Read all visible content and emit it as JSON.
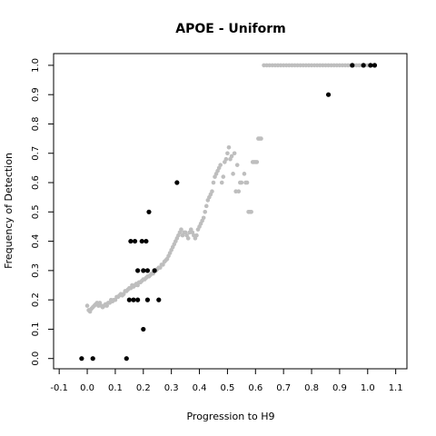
{
  "chart_data": {
    "type": "scatter",
    "title": "APOE - Uniform",
    "xlabel": "Progression to H9",
    "ylabel": "Frequency of Detection",
    "xlim": [
      -0.12,
      1.14
    ],
    "ylim": [
      -0.035,
      1.04
    ],
    "x_ticks": [
      "-0.1",
      "0.0",
      "0.1",
      "0.2",
      "0.3",
      "0.4",
      "0.5",
      "0.6",
      "0.7",
      "0.8",
      "0.9",
      "1.0",
      "1.1"
    ],
    "y_ticks": [
      "0.0",
      "0.1",
      "0.2",
      "0.3",
      "0.4",
      "0.5",
      "0.6",
      "0.7",
      "0.8",
      "0.9",
      "1.0"
    ],
    "grid": false,
    "series": [
      {
        "color": "#bebebe",
        "points": [
          [
            0.0,
            0.18
          ],
          [
            0.005,
            0.165
          ],
          [
            0.01,
            0.16
          ],
          [
            0.015,
            0.17
          ],
          [
            0.02,
            0.175
          ],
          [
            0.025,
            0.18
          ],
          [
            0.03,
            0.185
          ],
          [
            0.035,
            0.19
          ],
          [
            0.04,
            0.18
          ],
          [
            0.045,
            0.19
          ],
          [
            0.05,
            0.18
          ],
          [
            0.055,
            0.175
          ],
          [
            0.06,
            0.18
          ],
          [
            0.065,
            0.185
          ],
          [
            0.07,
            0.18
          ],
          [
            0.075,
            0.19
          ],
          [
            0.08,
            0.19
          ],
          [
            0.085,
            0.2
          ],
          [
            0.09,
            0.195
          ],
          [
            0.095,
            0.2
          ],
          [
            0.1,
            0.2
          ],
          [
            0.105,
            0.21
          ],
          [
            0.11,
            0.21
          ],
          [
            0.115,
            0.215
          ],
          [
            0.12,
            0.22
          ],
          [
            0.125,
            0.215
          ],
          [
            0.13,
            0.22
          ],
          [
            0.135,
            0.23
          ],
          [
            0.14,
            0.23
          ],
          [
            0.145,
            0.235
          ],
          [
            0.15,
            0.24
          ],
          [
            0.155,
            0.24
          ],
          [
            0.16,
            0.25
          ],
          [
            0.165,
            0.245
          ],
          [
            0.17,
            0.25
          ],
          [
            0.175,
            0.255
          ],
          [
            0.18,
            0.25
          ],
          [
            0.185,
            0.26
          ],
          [
            0.19,
            0.26
          ],
          [
            0.195,
            0.265
          ],
          [
            0.2,
            0.27
          ],
          [
            0.205,
            0.27
          ],
          [
            0.21,
            0.275
          ],
          [
            0.215,
            0.28
          ],
          [
            0.22,
            0.28
          ],
          [
            0.225,
            0.285
          ],
          [
            0.23,
            0.29
          ],
          [
            0.235,
            0.29
          ],
          [
            0.24,
            0.3
          ],
          [
            0.245,
            0.3
          ],
          [
            0.25,
            0.305
          ],
          [
            0.255,
            0.31
          ],
          [
            0.26,
            0.31
          ],
          [
            0.265,
            0.32
          ],
          [
            0.27,
            0.32
          ],
          [
            0.275,
            0.33
          ],
          [
            0.28,
            0.335
          ],
          [
            0.285,
            0.34
          ],
          [
            0.29,
            0.35
          ],
          [
            0.295,
            0.36
          ],
          [
            0.3,
            0.37
          ],
          [
            0.305,
            0.38
          ],
          [
            0.31,
            0.39
          ],
          [
            0.315,
            0.4
          ],
          [
            0.32,
            0.41
          ],
          [
            0.325,
            0.42
          ],
          [
            0.33,
            0.43
          ],
          [
            0.335,
            0.44
          ],
          [
            0.34,
            0.42
          ],
          [
            0.345,
            0.43
          ],
          [
            0.35,
            0.43
          ],
          [
            0.355,
            0.42
          ],
          [
            0.36,
            0.41
          ],
          [
            0.365,
            0.43
          ],
          [
            0.37,
            0.44
          ],
          [
            0.375,
            0.43
          ],
          [
            0.38,
            0.42
          ],
          [
            0.385,
            0.41
          ],
          [
            0.39,
            0.42
          ],
          [
            0.395,
            0.44
          ],
          [
            0.4,
            0.45
          ],
          [
            0.405,
            0.46
          ],
          [
            0.41,
            0.47
          ],
          [
            0.415,
            0.48
          ],
          [
            0.42,
            0.5
          ],
          [
            0.425,
            0.52
          ],
          [
            0.43,
            0.54
          ],
          [
            0.435,
            0.55
          ],
          [
            0.44,
            0.56
          ],
          [
            0.445,
            0.57
          ],
          [
            0.45,
            0.6
          ],
          [
            0.455,
            0.62
          ],
          [
            0.46,
            0.63
          ],
          [
            0.465,
            0.64
          ],
          [
            0.47,
            0.65
          ],
          [
            0.475,
            0.66
          ],
          [
            0.48,
            0.6
          ],
          [
            0.485,
            0.62
          ],
          [
            0.49,
            0.67
          ],
          [
            0.495,
            0.68
          ],
          [
            0.5,
            0.7
          ],
          [
            0.505,
            0.72
          ],
          [
            0.51,
            0.68
          ],
          [
            0.515,
            0.69
          ],
          [
            0.52,
            0.63
          ],
          [
            0.525,
            0.7
          ],
          [
            0.53,
            0.57
          ],
          [
            0.535,
            0.66
          ],
          [
            0.54,
            0.57
          ],
          [
            0.545,
            0.6
          ],
          [
            0.55,
            0.6
          ],
          [
            0.56,
            0.63
          ],
          [
            0.565,
            0.6
          ],
          [
            0.57,
            0.6
          ],
          [
            0.575,
            0.5
          ],
          [
            0.58,
            0.5
          ],
          [
            0.585,
            0.5
          ],
          [
            0.59,
            0.67
          ],
          [
            0.595,
            0.67
          ],
          [
            0.6,
            0.67
          ],
          [
            0.605,
            0.67
          ],
          [
            0.61,
            0.75
          ],
          [
            0.615,
            0.75
          ],
          [
            0.62,
            0.75
          ],
          [
            0.63,
            1.0
          ],
          [
            0.64,
            1.0
          ],
          [
            0.65,
            1.0
          ],
          [
            0.66,
            1.0
          ],
          [
            0.67,
            1.0
          ],
          [
            0.68,
            1.0
          ],
          [
            0.69,
            1.0
          ],
          [
            0.7,
            1.0
          ],
          [
            0.71,
            1.0
          ],
          [
            0.72,
            1.0
          ],
          [
            0.73,
            1.0
          ],
          [
            0.74,
            1.0
          ],
          [
            0.75,
            1.0
          ],
          [
            0.76,
            1.0
          ],
          [
            0.77,
            1.0
          ],
          [
            0.78,
            1.0
          ],
          [
            0.79,
            1.0
          ],
          [
            0.8,
            1.0
          ],
          [
            0.81,
            1.0
          ],
          [
            0.82,
            1.0
          ],
          [
            0.83,
            1.0
          ],
          [
            0.84,
            1.0
          ],
          [
            0.85,
            1.0
          ],
          [
            0.86,
            1.0
          ],
          [
            0.87,
            1.0
          ],
          [
            0.88,
            1.0
          ],
          [
            0.89,
            1.0
          ],
          [
            0.9,
            1.0
          ],
          [
            0.91,
            1.0
          ],
          [
            0.92,
            1.0
          ],
          [
            0.93,
            1.0
          ],
          [
            0.94,
            1.0
          ],
          [
            0.95,
            1.0
          ],
          [
            0.96,
            1.0
          ],
          [
            0.97,
            1.0
          ],
          [
            0.98,
            1.0
          ],
          [
            0.99,
            1.0
          ],
          [
            1.0,
            1.0
          ],
          [
            1.01,
            1.0
          ],
          [
            1.02,
            1.0
          ]
        ]
      },
      {
        "color": "#000000",
        "points": [
          [
            -0.02,
            0.0
          ],
          [
            0.02,
            0.0
          ],
          [
            0.14,
            0.0
          ],
          [
            0.2,
            0.1
          ],
          [
            0.15,
            0.2
          ],
          [
            0.165,
            0.2
          ],
          [
            0.18,
            0.2
          ],
          [
            0.215,
            0.2
          ],
          [
            0.255,
            0.2
          ],
          [
            0.18,
            0.3
          ],
          [
            0.2,
            0.3
          ],
          [
            0.215,
            0.3
          ],
          [
            0.24,
            0.3
          ],
          [
            0.155,
            0.4
          ],
          [
            0.17,
            0.4
          ],
          [
            0.195,
            0.4
          ],
          [
            0.21,
            0.4
          ],
          [
            0.22,
            0.5
          ],
          [
            0.32,
            0.6
          ],
          [
            0.86,
            0.9
          ],
          [
            0.945,
            1.0
          ],
          [
            0.985,
            1.0
          ],
          [
            1.01,
            1.0
          ],
          [
            1.025,
            1.0
          ]
        ]
      }
    ]
  }
}
